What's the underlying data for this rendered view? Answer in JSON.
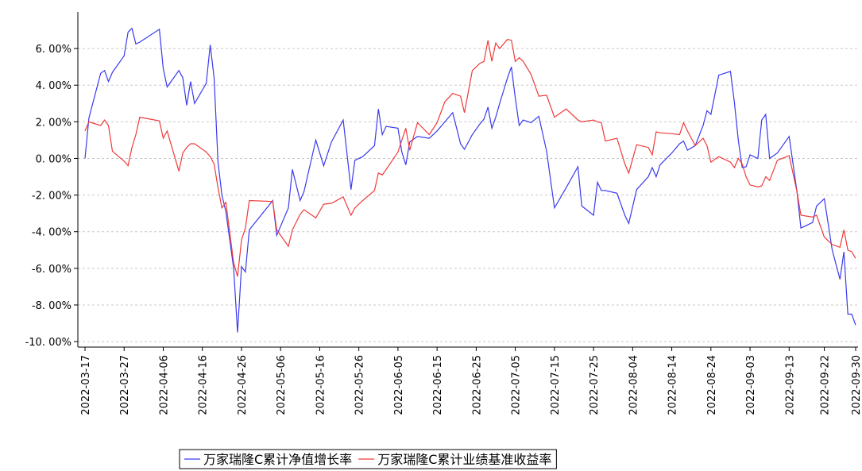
{
  "chart_data": {
    "type": "line",
    "x": [
      "2022-03-17",
      "2022-03-18",
      "2022-03-21",
      "2022-03-22",
      "2022-03-23",
      "2022-03-24",
      "2022-03-27",
      "2022-03-28",
      "2022-03-29",
      "2022-03-30",
      "2022-03-31",
      "2022-04-05",
      "2022-04-06",
      "2022-04-07",
      "2022-04-10",
      "2022-04-11",
      "2022-04-12",
      "2022-04-13",
      "2022-04-14",
      "2022-04-17",
      "2022-04-18",
      "2022-04-19",
      "2022-04-20",
      "2022-04-21",
      "2022-04-22",
      "2022-04-24",
      "2022-04-25",
      "2022-04-26",
      "2022-04-27",
      "2022-04-28",
      "2022-05-04",
      "2022-05-05",
      "2022-05-08",
      "2022-05-09",
      "2022-05-11",
      "2022-05-12",
      "2022-05-15",
      "2022-05-17",
      "2022-05-19",
      "2022-05-22",
      "2022-05-24",
      "2022-05-25",
      "2022-05-27",
      "2022-05-30",
      "2022-05-31",
      "2022-06-01",
      "2022-06-02",
      "2022-06-05",
      "2022-06-06",
      "2022-06-07",
      "2022-06-08",
      "2022-06-10",
      "2022-06-13",
      "2022-06-15",
      "2022-06-17",
      "2022-06-19",
      "2022-06-21",
      "2022-06-22",
      "2022-06-24",
      "2022-06-26",
      "2022-06-27",
      "2022-06-28",
      "2022-06-29",
      "2022-06-30",
      "2022-07-01",
      "2022-07-03",
      "2022-07-04",
      "2022-07-05",
      "2022-07-06",
      "2022-07-07",
      "2022-07-09",
      "2022-07-11",
      "2022-07-13",
      "2022-07-15",
      "2022-07-18",
      "2022-07-21",
      "2022-07-22",
      "2022-07-25",
      "2022-07-26",
      "2022-07-27",
      "2022-07-28",
      "2022-07-31",
      "2022-08-02",
      "2022-08-03",
      "2022-08-05",
      "2022-08-08",
      "2022-08-09",
      "2022-08-10",
      "2022-08-11",
      "2022-08-14",
      "2022-08-16",
      "2022-08-17",
      "2022-08-18",
      "2022-08-20",
      "2022-08-22",
      "2022-08-23",
      "2022-08-24",
      "2022-08-26",
      "2022-08-29",
      "2022-08-30",
      "2022-08-31",
      "2022-09-01",
      "2022-09-02",
      "2022-09-03",
      "2022-09-05",
      "2022-09-06",
      "2022-09-07",
      "2022-09-08",
      "2022-09-10",
      "2022-09-13",
      "2022-09-15",
      "2022-09-16",
      "2022-09-19",
      "2022-09-20",
      "2022-09-22",
      "2022-09-24",
      "2022-09-26",
      "2022-09-27",
      "2022-09-28",
      "2022-09-29",
      "2022-09-30"
    ],
    "series": [
      {
        "name": "万家瑞隆C累计净值增长率",
        "color": "#3a3aef",
        "values": [
          0,
          2.2,
          4.65,
          4.8,
          4.2,
          4.7,
          5.6,
          6.9,
          7.1,
          6.25,
          6.35,
          7.05,
          4.9,
          3.9,
          4.8,
          4.4,
          2.9,
          4.2,
          3.0,
          4.1,
          6.2,
          4.4,
          -0.2,
          -2.0,
          -2.9,
          -6.0,
          -9.5,
          -5.9,
          -6.2,
          -3.9,
          -2.3,
          -4.2,
          -2.7,
          -0.6,
          -2.3,
          -1.8,
          1.0,
          -0.4,
          0.9,
          2.1,
          -1.7,
          -0.1,
          0.1,
          0.7,
          2.7,
          1.3,
          1.75,
          1.65,
          0.35,
          -0.35,
          0.9,
          1.2,
          1.1,
          1.5,
          2.0,
          2.5,
          0.8,
          0.5,
          1.3,
          1.9,
          2.15,
          2.8,
          1.65,
          2.25,
          3.0,
          4.4,
          5.0,
          3.3,
          1.8,
          2.1,
          1.95,
          2.3,
          0.4,
          -2.7,
          -1.6,
          -0.45,
          -2.6,
          -3.1,
          -1.3,
          -1.75,
          -1.75,
          -1.9,
          -3.1,
          -3.55,
          -1.7,
          -1.0,
          -0.5,
          -1.0,
          -0.35,
          0.3,
          0.8,
          0.95,
          0.45,
          0.7,
          1.8,
          2.6,
          2.4,
          4.55,
          4.75,
          3.05,
          1.0,
          -0.5,
          -0.45,
          0.2,
          0.0,
          2.1,
          2.4,
          0.0,
          0.3,
          1.2,
          -1.8,
          -3.8,
          -3.5,
          -2.6,
          -2.2,
          -5.0,
          -6.6,
          -5.1,
          -8.5,
          -8.5,
          -9.1
        ]
      },
      {
        "name": "万家瑞隆C累计业绩基准收益率",
        "color": "#ef3a3a",
        "values": [
          1.5,
          2.0,
          1.8,
          2.1,
          1.8,
          0.4,
          -0.15,
          -0.4,
          0.6,
          1.3,
          2.25,
          2.05,
          1.1,
          1.5,
          -0.7,
          0.3,
          0.6,
          0.8,
          0.8,
          0.35,
          0.1,
          -0.3,
          -1.6,
          -2.7,
          -2.4,
          -5.7,
          -6.45,
          -4.45,
          -3.8,
          -2.3,
          -2.35,
          -3.9,
          -4.8,
          -3.9,
          -3.05,
          -2.8,
          -3.25,
          -2.5,
          -2.45,
          -2.1,
          -3.1,
          -2.7,
          -2.3,
          -1.75,
          -0.8,
          -0.9,
          -0.6,
          0.35,
          1.0,
          1.65,
          0.45,
          1.95,
          1.3,
          1.95,
          3.1,
          3.55,
          3.4,
          2.5,
          4.8,
          5.2,
          5.3,
          6.45,
          5.3,
          6.3,
          6.0,
          6.5,
          6.45,
          5.3,
          5.5,
          5.3,
          4.6,
          3.4,
          3.45,
          2.25,
          2.7,
          2.1,
          2.0,
          2.1,
          2.0,
          1.95,
          0.95,
          1.1,
          -0.3,
          -0.8,
          0.75,
          0.6,
          0.2,
          1.45,
          1.4,
          1.35,
          1.3,
          1.95,
          1.5,
          0.7,
          1.1,
          0.7,
          -0.2,
          0.1,
          -0.2,
          -0.5,
          0.0,
          -0.3,
          -1.0,
          -1.45,
          -1.55,
          -1.5,
          -1.0,
          -1.2,
          -0.1,
          0.15,
          -1.8,
          -3.1,
          -3.2,
          -3.1,
          -4.3,
          -4.7,
          -4.85,
          -3.9,
          -5.0,
          -5.1,
          -5.45
        ]
      }
    ],
    "xlim": [
      "2022-03-17",
      "2022-09-30"
    ],
    "xticks": [
      "2022-03-17",
      "2022-03-27",
      "2022-04-06",
      "2022-04-16",
      "2022-04-26",
      "2022-05-06",
      "2022-05-16",
      "2022-05-26",
      "2022-06-05",
      "2022-06-15",
      "2022-06-25",
      "2022-07-05",
      "2022-07-15",
      "2022-07-25",
      "2022-08-04",
      "2022-08-14",
      "2022-08-24",
      "2022-09-03",
      "2022-09-13",
      "2022-09-22",
      "2022-09-30"
    ],
    "ylim": [
      -10.3,
      8
    ],
    "yticks": [
      {
        "value": 6,
        "label": "6. 00%"
      },
      {
        "value": 4,
        "label": "4. 00%"
      },
      {
        "value": 2,
        "label": "2. 00%"
      },
      {
        "value": 0,
        "label": "0. 00%"
      },
      {
        "value": -2,
        "label": "-2. 00%"
      },
      {
        "value": -4,
        "label": "-4. 00%"
      },
      {
        "value": -6,
        "label": "-6. 00%"
      },
      {
        "value": -8,
        "label": "-8. 00%"
      },
      {
        "value": -10,
        "label": "-10. 00%"
      }
    ],
    "grid": true,
    "legend": "bottom"
  }
}
